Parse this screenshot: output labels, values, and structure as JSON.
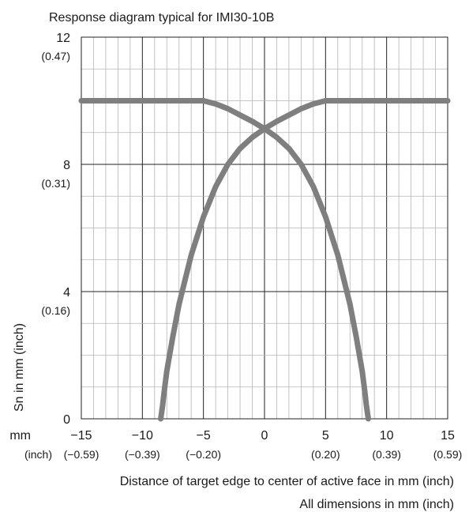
{
  "chart_data": {
    "type": "line",
    "title": "Response diagram typical for IMI30-10B",
    "xlabel": "Distance of target edge to center of active face in mm (inch)",
    "ylabel": "Sn in mm (inch)",
    "note": "All dimensions in mm (inch)",
    "x_unit_label": "mm",
    "x_unit_label_inch": "(inch)",
    "xlim": [
      -15,
      15
    ],
    "ylim": [
      0,
      12
    ],
    "grid": true,
    "x_ticks": [
      {
        "value": -15,
        "label": "−15",
        "inch": "(−0.59)"
      },
      {
        "value": -10,
        "label": "−10",
        "inch": "(−0.39)"
      },
      {
        "value": -5,
        "label": "−5",
        "inch": "(−0.20)"
      },
      {
        "value": 0,
        "label": "0",
        "inch": ""
      },
      {
        "value": 5,
        "label": "5",
        "inch": "(0.20)"
      },
      {
        "value": 10,
        "label": "10",
        "inch": "(0.39)"
      },
      {
        "value": 15,
        "label": "15",
        "inch": "(0.59)"
      }
    ],
    "y_ticks": [
      {
        "value": 0,
        "label": "0",
        "inch": ""
      },
      {
        "value": 4,
        "label": "4",
        "inch": "(0.16)"
      },
      {
        "value": 8,
        "label": "8",
        "inch": "(0.31)"
      },
      {
        "value": 12,
        "label": "12",
        "inch": "(0.47)"
      }
    ],
    "series_color": "#7f7f7f",
    "series": [
      {
        "x": [
          -15,
          -10,
          -5,
          -4,
          -3,
          -2,
          -1,
          0,
          1,
          2,
          3,
          4,
          5,
          6,
          7,
          7.5,
          8,
          8.2,
          8.35,
          8.5
        ],
        "y": [
          10.0,
          10.0,
          10.0,
          9.9,
          9.75,
          9.55,
          9.35,
          9.12,
          8.85,
          8.5,
          8.0,
          7.3,
          6.35,
          5.15,
          3.6,
          2.6,
          1.5,
          0.9,
          0.4,
          0
        ]
      },
      {
        "x": [
          -8.5,
          -8.35,
          -8.2,
          -8.0,
          -7.5,
          -7.0,
          -6.0,
          -5.0,
          -4.0,
          -3.0,
          -2.0,
          -1.0,
          0,
          1,
          2,
          3,
          4,
          5,
          10,
          15
        ],
        "y": [
          0,
          0.4,
          0.9,
          1.5,
          2.6,
          3.6,
          5.15,
          6.35,
          7.3,
          8.0,
          8.5,
          8.85,
          9.12,
          9.35,
          9.55,
          9.75,
          9.9,
          10.0,
          10.0,
          10.0
        ]
      }
    ]
  }
}
